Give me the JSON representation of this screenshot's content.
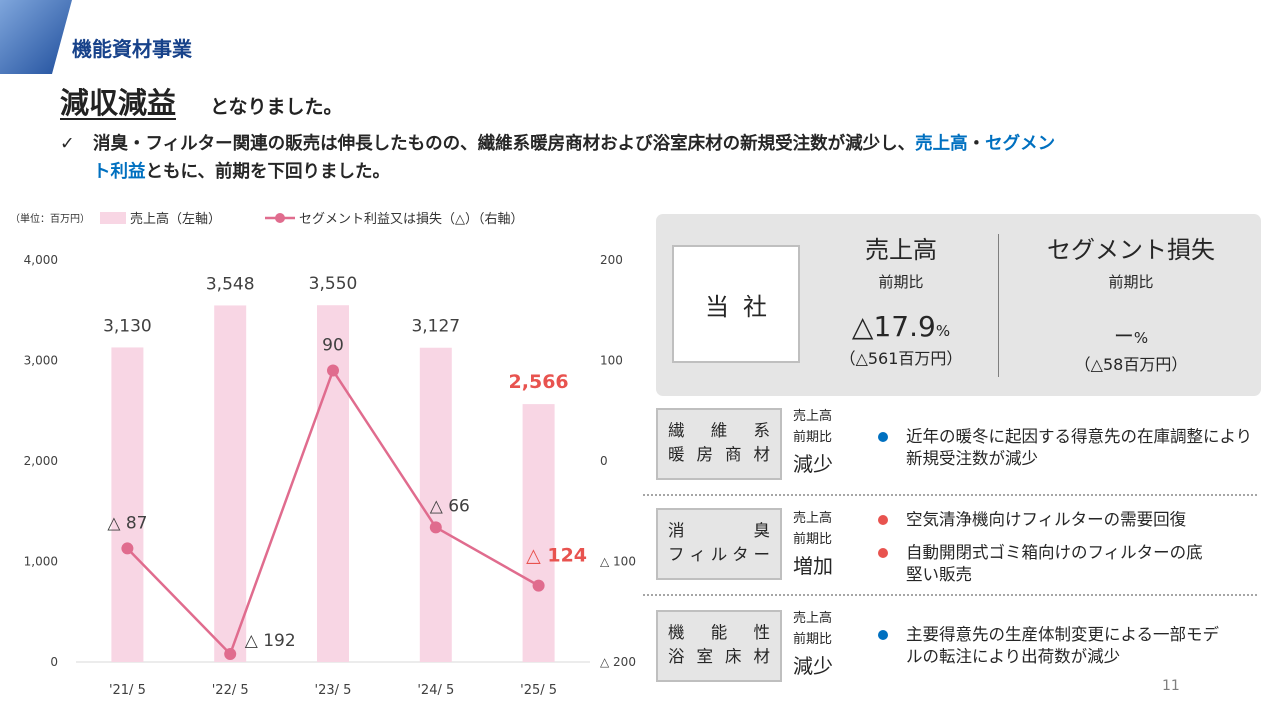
{
  "header": {
    "section_title": "機能資材事業",
    "headline_big": "減収減益",
    "headline_small": "となりました。",
    "bullet_check": "✓",
    "bullet_text_1": "消臭・フィルター関連の販売は伸長したものの、繊維系暖房商材および浴室床材の新規受注数が減少し、",
    "bullet_highlight_1": "売上高",
    "bullet_mid": "・",
    "bullet_highlight_2a": "セグメン",
    "bullet_highlight_2b": "ト利益",
    "bullet_text_2": "ともに、前期を下回りました。"
  },
  "legend": {
    "unit": "（単位：百万円）",
    "bar_label": "売上高（左軸）",
    "line_label": "セグメント利益又は損失（△）（右軸）"
  },
  "chart_data": {
    "type": "bar",
    "categories": [
      "'21/ 5",
      "'22/ 5",
      "'23/ 5",
      "'24/ 5",
      "'25/ 5"
    ],
    "series": [
      {
        "name": "売上高（左軸）",
        "type": "bar",
        "axis": "left",
        "values": [
          3130,
          3548,
          3550,
          3127,
          2566
        ],
        "labels": [
          "3,130",
          "3,548",
          "3,550",
          "3,127",
          "2,566"
        ]
      },
      {
        "name": "セグメント利益又は損失（△）（右軸）",
        "type": "line",
        "axis": "right",
        "values": [
          -87,
          -192,
          90,
          -66,
          -124
        ],
        "labels": [
          "△ 87",
          "△ 192",
          "90",
          "△ 66",
          "△ 124"
        ]
      }
    ],
    "left_axis": {
      "ylim": [
        0,
        4000
      ],
      "ticks": [
        "0",
        "1,000",
        "2,000",
        "3,000",
        "4,000"
      ]
    },
    "right_axis": {
      "ylim": [
        -200,
        200
      ],
      "ticks": [
        "△ 200",
        "△ 100",
        "0",
        "100",
        "200"
      ]
    },
    "highlight_last": true,
    "grid": false,
    "colors": {
      "bar": "#f8d6e4",
      "line": "#e06c8e",
      "highlight": "#e8534f",
      "axis": "#d9d9d9",
      "text": "#404040"
    }
  },
  "summary": {
    "company": "当社",
    "sales": {
      "title": "売上高",
      "sub": "前期比",
      "value": "△17.9",
      "unit": "%",
      "amount": "（△561百万円）"
    },
    "segment": {
      "title": "セグメント損失",
      "sub": "前期比",
      "value": "ー",
      "unit": "%",
      "amount": "（△58百万円）"
    }
  },
  "segments": [
    {
      "name_line1": [
        "繊",
        "維",
        "系"
      ],
      "name_line2": [
        "暖",
        "房",
        "商",
        "材"
      ],
      "meta1": "売上高",
      "meta2": "前期比",
      "result": "減少",
      "items": [
        {
          "text": "近年の暖冬に起因する得意先の在庫調整により新規受注数が減少",
          "color": "blue"
        }
      ]
    },
    {
      "name_line1": [
        "消",
        "臭"
      ],
      "name_line2": [
        "フ",
        "ィ",
        "ル",
        "タ",
        "ー"
      ],
      "meta1": "売上高",
      "meta2": "前期比",
      "result": "増加",
      "items": [
        {
          "text": "空気清浄機向けフィルターの需要回復",
          "color": "red"
        },
        {
          "text": "自動開閉式ゴミ箱向けのフィルターの底堅い販売",
          "color": "red"
        }
      ]
    },
    {
      "name_line1": [
        "機",
        "能",
        "性"
      ],
      "name_line2": [
        "浴",
        "室",
        "床",
        "材"
      ],
      "meta1": "売上高",
      "meta2": "前期比",
      "result": "減少",
      "items": [
        {
          "text": "主要得意先の生産体制変更による一部モデルの転注により出荷数が減少",
          "color": "blue"
        }
      ]
    }
  ],
  "page_number": "11"
}
